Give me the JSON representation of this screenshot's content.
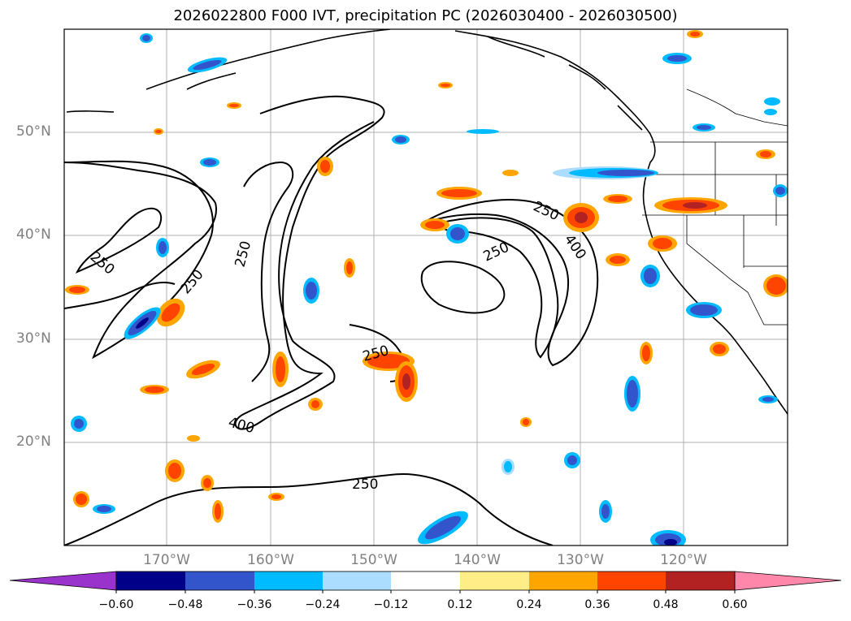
{
  "title": "2026022800 F000 IVT, precipitation PC (2026030400 - 2026030500)",
  "map": {
    "lat_labels": [
      "50°N",
      "40°N",
      "30°N",
      "20°N"
    ],
    "lon_labels": [
      "170°W",
      "160°W",
      "150°W",
      "140°W",
      "130°W",
      "120°W"
    ],
    "contour_labels": [
      "250",
      "250",
      "250",
      "250",
      "250",
      "250",
      "400",
      "400",
      "250"
    ]
  },
  "colorbar": {
    "colors": [
      "#9933cc",
      "#000088",
      "#3355cc",
      "#00bbff",
      "#aaddff",
      "#ffffff",
      "#ffee88",
      "#ffa500",
      "#ff4400",
      "#b22222",
      "#ff88aa"
    ],
    "tick_labels": [
      "−0.60",
      "−0.48",
      "−0.36",
      "−0.24",
      "−0.12",
      "0.12",
      "0.24",
      "0.36",
      "0.48",
      "0.60"
    ]
  }
}
